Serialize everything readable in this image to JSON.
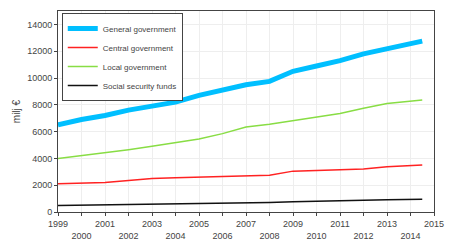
{
  "chart_data": {
    "type": "line",
    "y_label": "milj €",
    "x": [
      1999,
      2000,
      2001,
      2002,
      2003,
      2004,
      2005,
      2006,
      2007,
      2008,
      2009,
      2010,
      2011,
      2012,
      2013,
      2014.5
    ],
    "xlim": [
      1999,
      2015
    ],
    "xticks": [
      1999,
      2000,
      2001,
      2002,
      2003,
      2004,
      2005,
      2006,
      2007,
      2008,
      2009,
      2010,
      2011,
      2012,
      2013,
      2014,
      2015
    ],
    "ylim": [
      0,
      15000
    ],
    "yticks": [
      0,
      2000,
      4000,
      6000,
      8000,
      10000,
      12000,
      14000
    ],
    "grid": true,
    "legend": "upper left",
    "series": [
      {
        "name": "General government",
        "color": "#00bfff",
        "values": [
          6500,
          6900,
          7200,
          7600,
          7900,
          8200,
          8700,
          9100,
          9500,
          9750,
          10500,
          10900,
          11300,
          11800,
          12200,
          12750
        ]
      },
      {
        "name": "Central government",
        "color": "#ff2222",
        "values": [
          2100,
          2150,
          2200,
          2350,
          2500,
          2550,
          2600,
          2650,
          2700,
          2750,
          3050,
          3100,
          3150,
          3200,
          3380,
          3500
        ]
      },
      {
        "name": "Local government",
        "color": "#88dd44",
        "values": [
          4000,
          4200,
          4400,
          4650,
          4900,
          5150,
          5450,
          5850,
          6350,
          6550,
          6800,
          7050,
          7350,
          7750,
          8100,
          8350
        ]
      },
      {
        "name": "Social security funds",
        "color": "#111111",
        "values": [
          480,
          500,
          520,
          540,
          560,
          580,
          600,
          620,
          660,
          710,
          760,
          810,
          860,
          900,
          920,
          950
        ]
      }
    ]
  }
}
